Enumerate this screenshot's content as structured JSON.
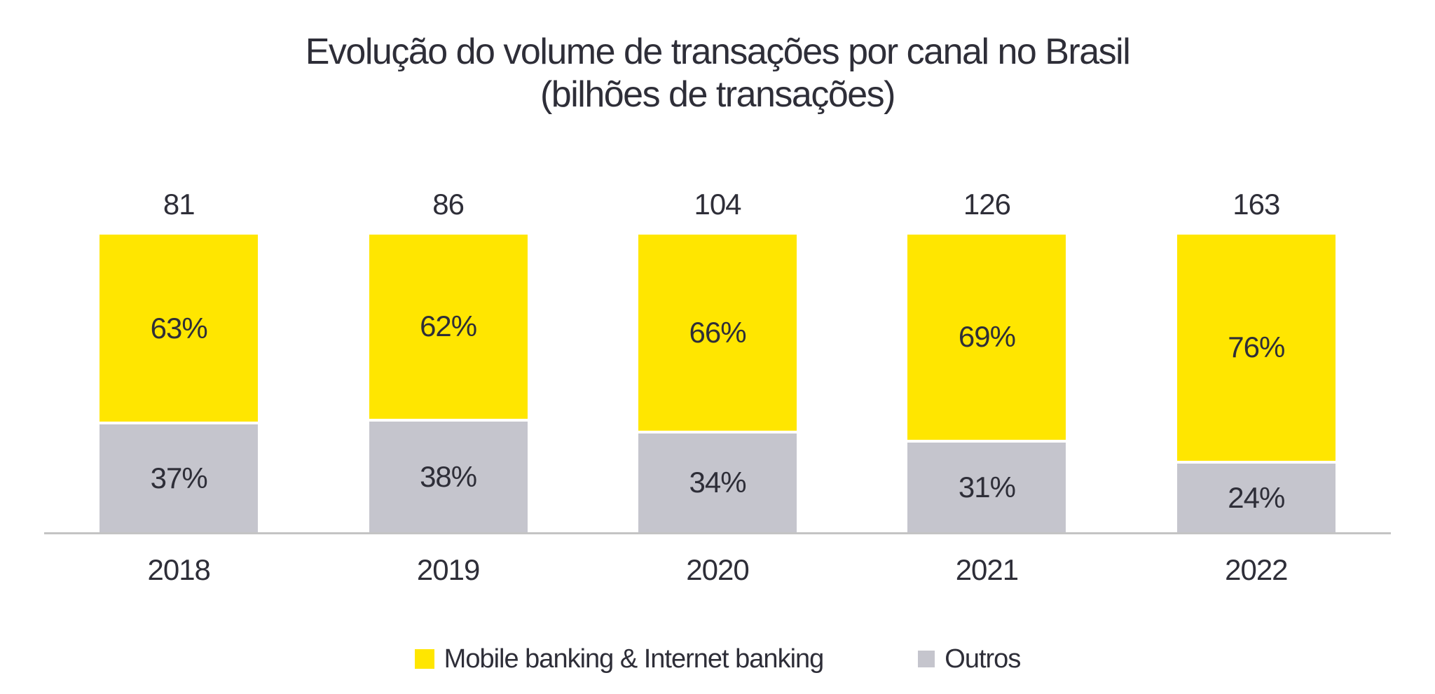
{
  "chart_data": {
    "type": "bar",
    "variant": "stacked-100-percent",
    "title": "Evolução do volume de transações por canal no Brasil",
    "subtitle": "(bilhões de transações)",
    "categories": [
      "2018",
      "2019",
      "2020",
      "2021",
      "2022"
    ],
    "totals": [
      81,
      86,
      104,
      126,
      163
    ],
    "totals_unit": "bilhões de transações",
    "series": [
      {
        "name": "Mobile banking & Internet banking",
        "color": "#FFE600",
        "values_pct": [
          63,
          62,
          66,
          69,
          76
        ]
      },
      {
        "name": "Outros",
        "color": "#C5C5CD",
        "values_pct": [
          37,
          38,
          34,
          31,
          24
        ]
      }
    ],
    "legend_position": "bottom",
    "grid": false,
    "value_labels": "percent inside segments, total above each bar"
  },
  "colors": {
    "text": "#2E2E38",
    "axis": "#C4C4C4",
    "background": "#FFFFFF",
    "mobile_banking": "#FFE600",
    "outros": "#C5C5CD"
  }
}
